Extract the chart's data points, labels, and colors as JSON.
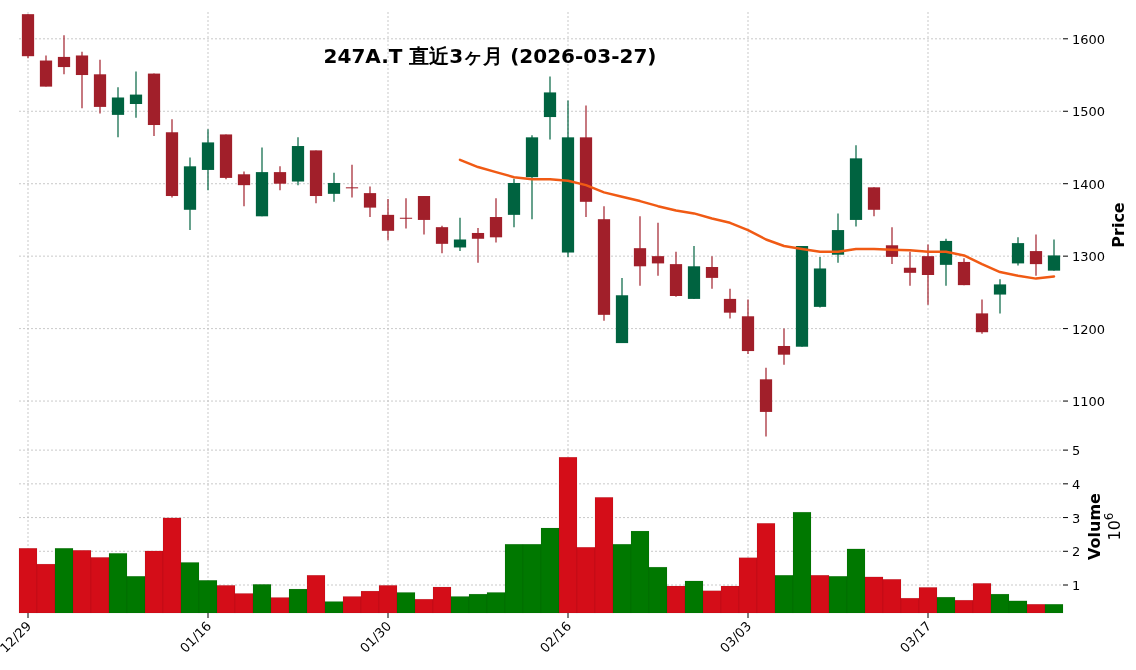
{
  "chart_data": [
    {
      "type": "candlestick",
      "title": "247A.T 直近3ヶ月 (2026-03-27)",
      "ylabel": "Price",
      "ohlc": [
        [
          1634,
          1634,
          1573,
          1576
        ],
        [
          1570,
          1577,
          1534,
          1534
        ],
        [
          1575,
          1605,
          1551,
          1561
        ],
        [
          1577,
          1582,
          1504,
          1550
        ],
        [
          1551,
          1571,
          1497,
          1506
        ],
        [
          1495,
          1533,
          1464,
          1519
        ],
        [
          1510,
          1555,
          1491,
          1523
        ],
        [
          1552,
          1552,
          1466,
          1481
        ],
        [
          1471,
          1489,
          1381,
          1383
        ],
        [
          1364,
          1436,
          1336,
          1424
        ],
        [
          1419,
          1475,
          1391,
          1457
        ],
        [
          1468,
          1468,
          1406,
          1408
        ],
        [
          1413,
          1417,
          1369,
          1398
        ],
        [
          1355,
          1450,
          1355,
          1416
        ],
        [
          1416,
          1424,
          1391,
          1400
        ],
        [
          1403,
          1464,
          1398,
          1452
        ],
        [
          1446,
          1446,
          1373,
          1383
        ],
        [
          1386,
          1415,
          1375,
          1401
        ],
        [
          1395,
          1426,
          1381,
          1394
        ],
        [
          1387,
          1396,
          1354,
          1367
        ],
        [
          1357,
          1379,
          1322,
          1335
        ],
        [
          1353,
          1380,
          1338,
          1352
        ],
        [
          1383,
          1383,
          1330,
          1350
        ],
        [
          1340,
          1342,
          1304,
          1317
        ],
        [
          1312,
          1353,
          1307,
          1323
        ],
        [
          1332,
          1339,
          1291,
          1324
        ],
        [
          1354,
          1380,
          1319,
          1326
        ],
        [
          1357,
          1407,
          1340,
          1401
        ],
        [
          1409,
          1467,
          1351,
          1464
        ],
        [
          1492,
          1548,
          1461,
          1526
        ],
        [
          1305,
          1515,
          1299,
          1464
        ],
        [
          1464,
          1508,
          1354,
          1375
        ],
        [
          1351,
          1369,
          1211,
          1219
        ],
        [
          1180,
          1270,
          1180,
          1246
        ],
        [
          1311,
          1355,
          1259,
          1286
        ],
        [
          1300,
          1346,
          1273,
          1290
        ],
        [
          1289,
          1306,
          1244,
          1245
        ],
        [
          1241,
          1314,
          1241,
          1286
        ],
        [
          1285,
          1300,
          1255,
          1270
        ],
        [
          1241,
          1255,
          1214,
          1222
        ],
        [
          1217,
          1240,
          1165,
          1169
        ],
        [
          1130,
          1146,
          1051,
          1085
        ],
        [
          1176,
          1200,
          1150,
          1164
        ],
        [
          1175,
          1314,
          1175,
          1314
        ],
        [
          1230,
          1299,
          1229,
          1283
        ],
        [
          1302,
          1359,
          1291,
          1336
        ],
        [
          1350,
          1453,
          1341,
          1435
        ],
        [
          1395,
          1395,
          1355,
          1364
        ],
        [
          1315,
          1340,
          1289,
          1299
        ],
        [
          1284,
          1306,
          1259,
          1277
        ],
        [
          1300,
          1316,
          1233,
          1274
        ],
        [
          1288,
          1324,
          1259,
          1321
        ],
        [
          1292,
          1297,
          1260,
          1260
        ],
        [
          1221,
          1240,
          1193,
          1195
        ],
        [
          1247,
          1268,
          1221,
          1261
        ],
        [
          1290,
          1326,
          1287,
          1318
        ],
        [
          1307,
          1330,
          1273,
          1289
        ],
        [
          1280,
          1323,
          1280,
          1301
        ]
      ],
      "colors": [
        "#a11f2a",
        "#a11f2a",
        "#a11f2a",
        "#a11f2a",
        "#a11f2a",
        "#006340",
        "#006340",
        "#a11f2a",
        "#a11f2a",
        "#006340",
        "#006340",
        "#a11f2a",
        "#a11f2a",
        "#006340",
        "#a11f2a",
        "#006340",
        "#a11f2a",
        "#006340",
        "#a11f2a",
        "#a11f2a",
        "#a11f2a",
        "#a11f2a",
        "#a11f2a",
        "#a11f2a",
        "#006340",
        "#a11f2a",
        "#a11f2a",
        "#006340",
        "#006340",
        "#006340",
        "#006340",
        "#a11f2a",
        "#a11f2a",
        "#006340",
        "#a11f2a",
        "#a11f2a",
        "#a11f2a",
        "#006340",
        "#a11f2a",
        "#a11f2a",
        "#a11f2a",
        "#a11f2a",
        "#a11f2a",
        "#006340",
        "#006340",
        "#006340",
        "#006340",
        "#a11f2a",
        "#a11f2a",
        "#a11f2a",
        "#a11f2a",
        "#006340",
        "#a11f2a",
        "#a11f2a",
        "#006340",
        "#006340",
        "#a11f2a",
        "#006340"
      ],
      "series": [
        {
          "type": "line",
          "color": "#f05a14",
          "values": [
            null,
            null,
            null,
            null,
            null,
            null,
            null,
            null,
            null,
            null,
            null,
            null,
            null,
            null,
            null,
            null,
            null,
            null,
            null,
            null,
            null,
            null,
            null,
            null,
            1433,
            1423,
            1416,
            1409,
            1406,
            1406,
            1404,
            1398,
            1388,
            1382,
            1376,
            1369,
            1363,
            1359,
            1352,
            1346,
            1336,
            1323,
            1314,
            1310,
            1306,
            1306,
            1310,
            1310,
            1309,
            1308,
            1306,
            1306,
            1301,
            1289,
            1278,
            1273,
            1269,
            1272
          ]
        }
      ],
      "ylim": [
        1049,
        1637
      ],
      "yticks": [
        1100,
        1200,
        1300,
        1400,
        1500,
        1600
      ],
      "grid": true,
      "tick_labels": "y"
    },
    {
      "type": "bar",
      "ylabel": "Volume",
      "annotations": [
        "10$^{6}$"
      ],
      "categories": [
        "12/29",
        null,
        null,
        null,
        null,
        null,
        null,
        null,
        null,
        null,
        "01/16",
        null,
        null,
        null,
        null,
        null,
        null,
        null,
        null,
        null,
        "01/30",
        null,
        null,
        null,
        null,
        null,
        null,
        null,
        null,
        null,
        "02/16",
        null,
        null,
        null,
        null,
        null,
        null,
        null,
        null,
        null,
        "03/03",
        null,
        null,
        null,
        null,
        null,
        null,
        null,
        null,
        null,
        "03/17",
        null,
        null,
        null,
        null,
        null,
        null,
        null
      ],
      "values": [
        2.09,
        1.62,
        2.09,
        2.03,
        1.82,
        1.94,
        1.26,
        2.01,
        2.99,
        1.67,
        1.14,
        0.99,
        0.75,
        1.02,
        0.63,
        0.88,
        1.29,
        0.51,
        0.66,
        0.82,
        0.99,
        0.78,
        0.58,
        0.94,
        0.66,
        0.73,
        0.78,
        2.21,
        2.21,
        2.69,
        4.79,
        2.12,
        3.6,
        2.21,
        2.6,
        1.53,
        0.97,
        1.12,
        0.83,
        0.97,
        1.81,
        2.83,
        1.29,
        3.16,
        1.29,
        1.26,
        2.07,
        1.24,
        1.17,
        0.61,
        0.93,
        0.64,
        0.55,
        1.05,
        0.73,
        0.53,
        0.43,
        0.43
      ],
      "colors": [
        "#d40d18",
        "#d40d18",
        "#007800",
        "#d40d18",
        "#d40d18",
        "#007800",
        "#007800",
        "#d40d18",
        "#d40d18",
        "#007800",
        "#007800",
        "#d40d18",
        "#d40d18",
        "#007800",
        "#d40d18",
        "#007800",
        "#d40d18",
        "#007800",
        "#d40d18",
        "#d40d18",
        "#d40d18",
        "#007800",
        "#d40d18",
        "#d40d18",
        "#007800",
        "#007800",
        "#007800",
        "#007800",
        "#007800",
        "#007800",
        "#d40d18",
        "#d40d18",
        "#d40d18",
        "#007800",
        "#007800",
        "#007800",
        "#d40d18",
        "#007800",
        "#d40d18",
        "#d40d18",
        "#d40d18",
        "#d40d18",
        "#007800",
        "#007800",
        "#d40d18",
        "#007800",
        "#007800",
        "#d40d18",
        "#d40d18",
        "#d40d18",
        "#d40d18",
        "#007800",
        "#d40d18",
        "#d40d18",
        "#007800",
        "#007800",
        "#d40d18",
        "#007800"
      ],
      "ylim": [
        0.17,
        5.3
      ],
      "yticks": [
        1,
        2,
        3,
        4,
        5
      ],
      "grid": true
    }
  ]
}
